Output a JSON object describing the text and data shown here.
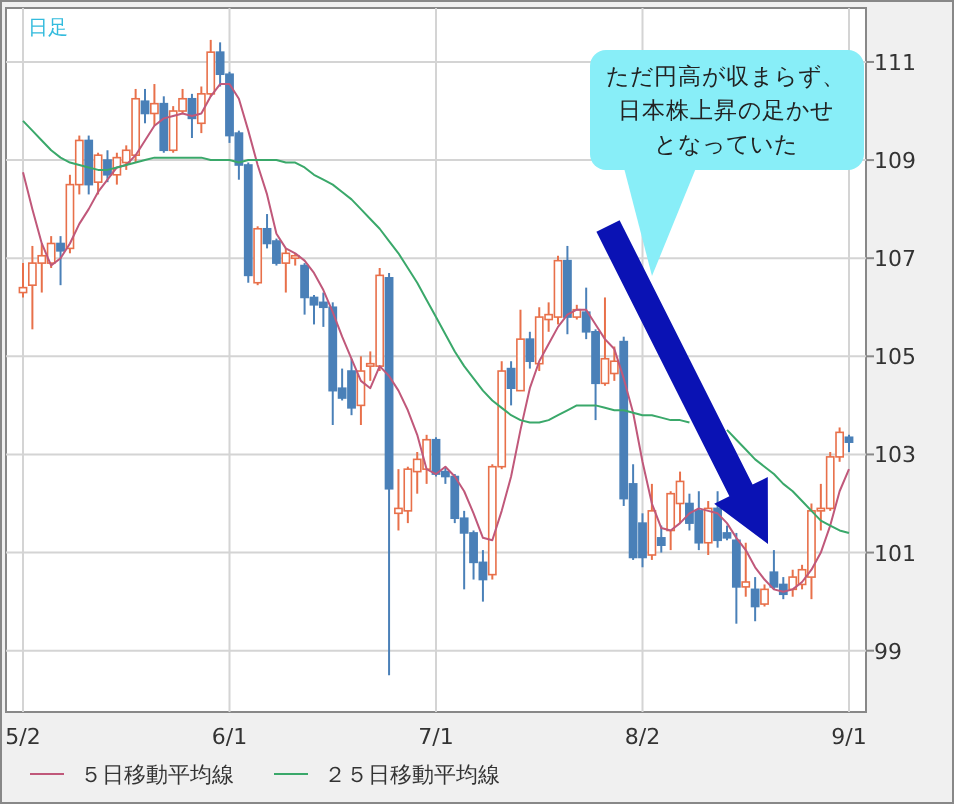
{
  "chart_data": {
    "type": "candlestick",
    "categories": [
      "5/2",
      null,
      null,
      null,
      null,
      null,
      null,
      null,
      null,
      null,
      null,
      null,
      null,
      null,
      null,
      null,
      null,
      null,
      null,
      null,
      null,
      null,
      "6/1",
      null,
      null,
      null,
      null,
      null,
      null,
      null,
      null,
      null,
      null,
      null,
      null,
      null,
      null,
      null,
      null,
      null,
      null,
      null,
      null,
      null,
      "7/1",
      null,
      null,
      null,
      null,
      null,
      null,
      null,
      null,
      null,
      null,
      null,
      null,
      null,
      null,
      null,
      null,
      null,
      null,
      null,
      null,
      null,
      "8/2",
      null,
      null,
      null,
      null,
      null,
      null,
      null,
      null,
      null,
      null,
      null,
      null,
      null,
      null,
      null,
      null,
      null,
      null,
      null,
      null,
      null,
      "9/1"
    ],
    "ohlc": [
      [
        106.3,
        106.9,
        106.2,
        106.4
      ],
      [
        106.45,
        107.25,
        105.55,
        106.9
      ],
      [
        106.9,
        107.3,
        106.3,
        107.05
      ],
      [
        106.9,
        107.45,
        106.8,
        107.3
      ],
      [
        107.3,
        107.45,
        106.45,
        107.15
      ],
      [
        107.2,
        108.7,
        107.1,
        108.5
      ],
      [
        108.5,
        109.5,
        108.3,
        109.4
      ],
      [
        109.4,
        109.5,
        108.3,
        108.5
      ],
      [
        108.55,
        109.15,
        108.3,
        109.1
      ],
      [
        109.0,
        109.2,
        108.55,
        108.7
      ],
      [
        108.7,
        109.15,
        108.5,
        109.05
      ],
      [
        108.95,
        109.3,
        108.8,
        109.2
      ],
      [
        109.1,
        110.45,
        108.95,
        110.25
      ],
      [
        110.2,
        110.45,
        109.75,
        109.95
      ],
      [
        109.95,
        110.55,
        109.7,
        110.15
      ],
      [
        110.15,
        110.3,
        109.15,
        109.2
      ],
      [
        109.2,
        110.1,
        109.15,
        110.0
      ],
      [
        110.0,
        110.45,
        109.95,
        110.25
      ],
      [
        110.25,
        110.35,
        109.45,
        109.85
      ],
      [
        109.75,
        110.5,
        109.55,
        110.35
      ],
      [
        110.35,
        111.45,
        110.3,
        111.2
      ],
      [
        111.2,
        111.4,
        110.5,
        110.75
      ],
      [
        110.75,
        110.8,
        109.35,
        109.5
      ],
      [
        109.55,
        109.6,
        108.6,
        108.9
      ],
      [
        108.9,
        108.95,
        106.5,
        106.65
      ],
      [
        106.5,
        107.65,
        106.45,
        107.6
      ],
      [
        107.6,
        107.9,
        107.2,
        107.3
      ],
      [
        107.35,
        107.4,
        106.85,
        106.9
      ],
      [
        106.9,
        107.2,
        106.3,
        107.1
      ],
      [
        107.0,
        107.1,
        106.85,
        107.05
      ],
      [
        106.85,
        106.9,
        105.85,
        106.2
      ],
      [
        106.2,
        106.25,
        105.65,
        106.05
      ],
      [
        106.1,
        106.3,
        105.6,
        106.0
      ],
      [
        106.0,
        106.1,
        103.6,
        104.3
      ],
      [
        104.35,
        104.75,
        104.1,
        104.15
      ],
      [
        104.7,
        104.95,
        103.8,
        103.95
      ],
      [
        104.0,
        105.0,
        103.6,
        104.7
      ],
      [
        104.8,
        105.1,
        104.5,
        104.85
      ],
      [
        104.8,
        106.8,
        104.7,
        106.65
      ],
      [
        106.6,
        106.7,
        98.5,
        102.3
      ],
      [
        101.8,
        102.7,
        101.45,
        101.9
      ],
      [
        101.85,
        102.75,
        101.6,
        102.7
      ],
      [
        102.65,
        103.05,
        102.2,
        102.9
      ],
      [
        102.7,
        103.4,
        102.4,
        103.3
      ],
      [
        103.3,
        103.35,
        102.55,
        102.6
      ],
      [
        102.65,
        102.75,
        102.4,
        102.55
      ],
      [
        102.55,
        102.6,
        101.6,
        101.7
      ],
      [
        101.7,
        101.85,
        100.25,
        101.4
      ],
      [
        101.4,
        101.45,
        100.45,
        100.8
      ],
      [
        100.8,
        101.05,
        100.0,
        100.45
      ],
      [
        100.55,
        102.8,
        100.45,
        102.75
      ],
      [
        102.75,
        104.9,
        102.7,
        104.7
      ],
      [
        104.75,
        104.9,
        104.0,
        104.35
      ],
      [
        104.3,
        105.95,
        104.3,
        105.35
      ],
      [
        105.35,
        105.5,
        104.75,
        104.9
      ],
      [
        104.85,
        106.0,
        104.7,
        105.8
      ],
      [
        105.75,
        106.1,
        105.5,
        105.85
      ],
      [
        105.8,
        107.05,
        105.65,
        106.95
      ],
      [
        106.95,
        107.25,
        105.45,
        105.8
      ],
      [
        105.8,
        106.05,
        105.75,
        105.95
      ],
      [
        105.9,
        106.4,
        105.35,
        105.5
      ],
      [
        105.5,
        105.55,
        103.7,
        104.45
      ],
      [
        104.45,
        106.2,
        104.4,
        104.95
      ],
      [
        104.65,
        105.2,
        104.5,
        104.9
      ],
      [
        105.3,
        105.4,
        101.95,
        102.1
      ],
      [
        102.4,
        102.8,
        100.85,
        100.9
      ],
      [
        101.6,
        101.8,
        100.7,
        100.9
      ],
      [
        100.95,
        102.4,
        100.85,
        101.85
      ],
      [
        101.3,
        101.55,
        101.0,
        101.15
      ],
      [
        101.45,
        102.25,
        101.05,
        102.2
      ],
      [
        102.0,
        102.65,
        101.6,
        102.45
      ],
      [
        102.0,
        102.2,
        101.45,
        101.6
      ],
      [
        101.85,
        102.25,
        101.05,
        101.2
      ],
      [
        101.2,
        102.05,
        100.95,
        101.9
      ],
      [
        101.9,
        102.25,
        101.1,
        101.25
      ],
      [
        101.4,
        101.55,
        101.25,
        101.3
      ],
      [
        101.25,
        101.4,
        99.55,
        100.3
      ],
      [
        100.3,
        101.2,
        100.1,
        100.4
      ],
      [
        100.25,
        100.5,
        99.6,
        99.9
      ],
      [
        99.95,
        100.35,
        99.9,
        100.25
      ],
      [
        100.6,
        101.05,
        100.25,
        100.3
      ],
      [
        100.35,
        100.5,
        100.05,
        100.15
      ],
      [
        100.25,
        100.65,
        100.1,
        100.5
      ],
      [
        100.35,
        100.75,
        100.25,
        100.65
      ],
      [
        100.5,
        102.0,
        100.05,
        101.85
      ],
      [
        101.85,
        102.4,
        101.45,
        101.9
      ],
      [
        101.9,
        103.05,
        101.85,
        102.95
      ],
      [
        102.95,
        103.55,
        102.85,
        103.45
      ],
      [
        103.35,
        103.4,
        103.05,
        103.25
      ]
    ],
    "colors": [
      "#e8704a",
      "#e8704a",
      "#e8704a",
      "#e8704a",
      "#4a80b8",
      "#e8704a",
      "#e8704a",
      "#4a80b8",
      "#e8704a",
      "#4a80b8",
      "#e8704a",
      "#e8704a",
      "#e8704a",
      "#4a80b8",
      "#e8704a",
      "#4a80b8",
      "#e8704a",
      "#e8704a",
      "#4a80b8",
      "#e8704a",
      "#e8704a",
      "#4a80b8",
      "#4a80b8",
      "#4a80b8",
      "#4a80b8",
      "#e8704a",
      "#4a80b8",
      "#4a80b8",
      "#e8704a",
      "#e8704a",
      "#4a80b8",
      "#4a80b8",
      "#4a80b8",
      "#4a80b8",
      "#4a80b8",
      "#4a80b8",
      "#e8704a",
      "#e8704a",
      "#e8704a",
      "#4a80b8",
      "#e8704a",
      "#e8704a",
      "#e8704a",
      "#e8704a",
      "#4a80b8",
      "#4a80b8",
      "#4a80b8",
      "#4a80b8",
      "#4a80b8",
      "#4a80b8",
      "#e8704a",
      "#e8704a",
      "#4a80b8",
      "#e8704a",
      "#4a80b8",
      "#e8704a",
      "#e8704a",
      "#e8704a",
      "#4a80b8",
      "#e8704a",
      "#4a80b8",
      "#4a80b8",
      "#e8704a",
      "#e8704a",
      "#4a80b8",
      "#4a80b8",
      "#4a80b8",
      "#e8704a",
      "#4a80b8",
      "#e8704a",
      "#e8704a",
      "#4a80b8",
      "#4a80b8",
      "#e8704a",
      "#4a80b8",
      "#4a80b8",
      "#4a80b8",
      "#e8704a",
      "#4a80b8",
      "#e8704a",
      "#4a80b8",
      "#4a80b8",
      "#e8704a",
      "#e8704a",
      "#e8704a",
      "#e8704a",
      "#e8704a",
      "#e8704a",
      "#4a80b8"
    ],
    "series": [
      {
        "name": "５日移動平均線",
        "type": "line",
        "color": "#c0587a",
        "values": [
          108.75,
          108.0,
          107.3,
          106.85,
          107.0,
          107.3,
          107.7,
          108.0,
          108.35,
          108.6,
          108.85,
          108.9,
          109.1,
          109.4,
          109.7,
          109.85,
          109.9,
          109.95,
          109.9,
          109.95,
          110.3,
          110.55,
          110.55,
          110.25,
          109.6,
          108.9,
          108.3,
          107.5,
          107.2,
          107.1,
          106.95,
          106.7,
          106.35,
          105.9,
          105.4,
          104.95,
          104.5,
          104.35,
          104.8,
          104.6,
          104.3,
          103.9,
          103.4,
          102.7,
          102.6,
          102.75,
          102.55,
          102.25,
          101.8,
          101.3,
          101.25,
          101.85,
          102.55,
          103.5,
          104.35,
          104.9,
          105.25,
          105.6,
          105.85,
          105.95,
          105.95,
          105.65,
          105.35,
          105.15,
          104.55,
          103.85,
          102.85,
          102.0,
          101.5,
          101.45,
          101.6,
          101.8,
          101.9,
          101.85,
          101.8,
          101.6,
          101.3,
          101.05,
          100.7,
          100.45,
          100.25,
          100.2,
          100.25,
          100.4,
          100.65,
          101.0,
          101.55,
          102.25,
          102.7
        ]
      },
      {
        "name": "２５日移動平均線",
        "type": "line",
        "color": "#3aa86a",
        "values": [
          109.8,
          109.6,
          109.4,
          109.2,
          109.05,
          108.95,
          108.9,
          108.85,
          108.8,
          108.8,
          108.85,
          108.9,
          108.95,
          109.0,
          109.05,
          109.05,
          109.05,
          109.05,
          109.05,
          109.05,
          109.0,
          109.0,
          109.0,
          108.95,
          109.0,
          109.0,
          109.0,
          109.0,
          108.95,
          108.95,
          108.85,
          108.7,
          108.6,
          108.5,
          108.35,
          108.2,
          108.0,
          107.8,
          107.6,
          107.35,
          107.1,
          106.8,
          106.5,
          106.15,
          105.8,
          105.45,
          105.1,
          104.8,
          104.55,
          104.3,
          104.1,
          103.95,
          103.8,
          103.7,
          103.65,
          103.65,
          103.7,
          103.8,
          103.9,
          104.0,
          104.0,
          104.0,
          103.95,
          103.9,
          103.9,
          103.85,
          103.8,
          103.8,
          103.75,
          103.7,
          103.7,
          103.65,
          null,
          null,
          null,
          103.5,
          103.3,
          103.1,
          102.9,
          102.75,
          102.6,
          102.4,
          102.25,
          102.05,
          101.85,
          101.65,
          101.55,
          101.45,
          101.4
        ]
      }
    ],
    "ylim": [
      97.75,
      112.1
    ],
    "yticks": [
      99,
      101,
      103,
      105,
      107,
      109,
      111
    ],
    "grid": true,
    "legend": "bottom",
    "annotations": [
      "日足",
      "ただ円高が収まらず、日本株上昇の足かせとなっていた"
    ]
  }
}
